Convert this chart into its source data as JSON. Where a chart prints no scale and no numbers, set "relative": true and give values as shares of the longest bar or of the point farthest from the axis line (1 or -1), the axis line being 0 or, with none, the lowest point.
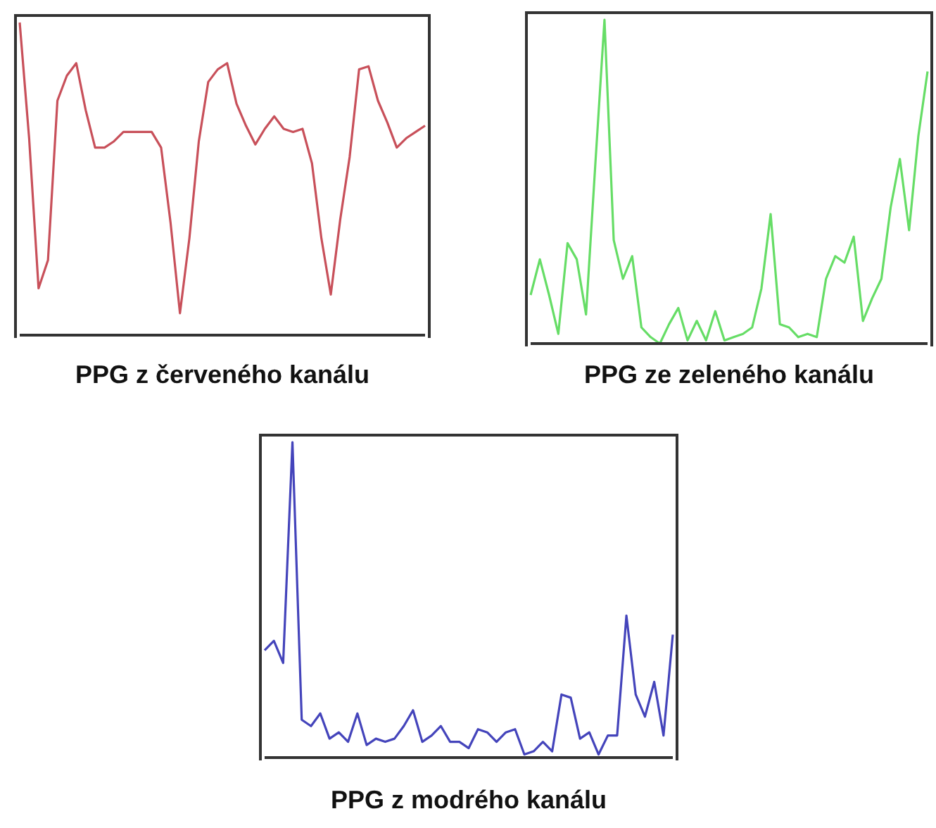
{
  "chart_data": [
    {
      "type": "line",
      "relative": true,
      "xlabel": "PPG z červeného kanálu",
      "categories": [
        null,
        null,
        null,
        null,
        null,
        null,
        null,
        null,
        null,
        null,
        null,
        null,
        null,
        null,
        null,
        null,
        null,
        null,
        null,
        null,
        null,
        null,
        null,
        null,
        null,
        null,
        null,
        null,
        null,
        null,
        null,
        null,
        null,
        null,
        null,
        null,
        null,
        null,
        null,
        null,
        null,
        null,
        null,
        null
      ],
      "series": [
        {
          "color": "#c8505a",
          "values": [
            1.0,
            0.63,
            0.15,
            0.24,
            0.75,
            0.83,
            0.87,
            0.72,
            0.6,
            0.6,
            0.62,
            0.65,
            0.65,
            0.65,
            0.65,
            0.6,
            0.36,
            0.07,
            0.31,
            0.62,
            0.81,
            0.85,
            0.87,
            0.74,
            0.67,
            0.61,
            0.66,
            0.7,
            0.66,
            0.65,
            0.66,
            0.55,
            0.31,
            0.13,
            0.37,
            0.57,
            0.85,
            0.86,
            0.75,
            0.68,
            0.6,
            0.63,
            0.65,
            0.67
          ]
        }
      ]
    },
    {
      "type": "line",
      "relative": true,
      "xlabel": "PPG ze zeleného kanálu",
      "categories": [
        null,
        null,
        null,
        null,
        null,
        null,
        null,
        null,
        null,
        null,
        null,
        null,
        null,
        null,
        null,
        null,
        null,
        null,
        null,
        null,
        null,
        null,
        null,
        null,
        null,
        null,
        null,
        null,
        null,
        null,
        null,
        null,
        null,
        null,
        null,
        null,
        null,
        null,
        null,
        null,
        null,
        null,
        null,
        null
      ],
      "series": [
        {
          "color": "#66dd66",
          "values": [
            0.15,
            0.26,
            0.15,
            0.03,
            0.31,
            0.26,
            0.09,
            0.55,
            1.0,
            0.32,
            0.2,
            0.27,
            0.05,
            0.02,
            0.0,
            0.06,
            0.11,
            0.01,
            0.07,
            0.01,
            0.1,
            0.01,
            0.02,
            0.03,
            0.05,
            0.17,
            0.4,
            0.06,
            0.05,
            0.02,
            0.03,
            0.02,
            0.2,
            0.27,
            0.25,
            0.33,
            0.07,
            0.14,
            0.2,
            0.42,
            0.57,
            0.35,
            0.64,
            0.84
          ]
        }
      ]
    },
    {
      "type": "line",
      "relative": true,
      "xlabel": "PPG z modrého kanálu",
      "categories": [
        null,
        null,
        null,
        null,
        null,
        null,
        null,
        null,
        null,
        null,
        null,
        null,
        null,
        null,
        null,
        null,
        null,
        null,
        null,
        null,
        null,
        null,
        null,
        null,
        null,
        null,
        null,
        null,
        null,
        null,
        null,
        null,
        null,
        null,
        null,
        null,
        null,
        null,
        null,
        null,
        null,
        null,
        null,
        null,
        null
      ],
      "series": [
        {
          "color": "#4444bb",
          "values": [
            0.34,
            0.37,
            0.3,
            1.0,
            0.12,
            0.1,
            0.14,
            0.06,
            0.08,
            0.05,
            0.14,
            0.04,
            0.06,
            0.05,
            0.06,
            0.1,
            0.15,
            0.05,
            0.07,
            0.1,
            0.05,
            0.05,
            0.03,
            0.09,
            0.08,
            0.05,
            0.08,
            0.09,
            0.01,
            0.02,
            0.05,
            0.02,
            0.2,
            0.19,
            0.06,
            0.08,
            0.01,
            0.07,
            0.07,
            0.45,
            0.2,
            0.13,
            0.24,
            0.07,
            0.39
          ]
        }
      ]
    }
  ]
}
